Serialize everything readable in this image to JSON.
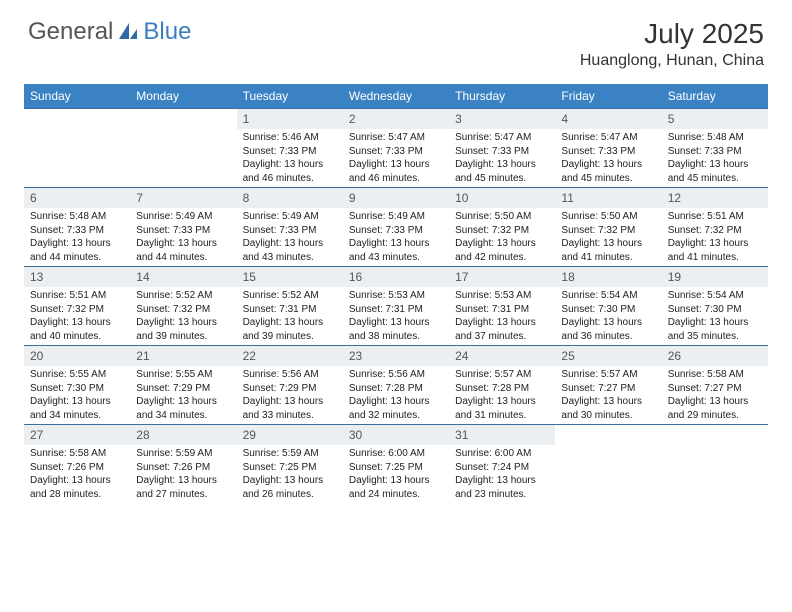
{
  "logo": {
    "text1": "General",
    "text2": "Blue"
  },
  "title": "July 2025",
  "location": "Huanglong, Hunan, China",
  "colors": {
    "header_bg": "#3b82c4",
    "header_text": "#ffffff",
    "daynum_bg": "#eceff1",
    "row_divider": "#3b6fa0",
    "logo_accent": "#3b7fbf",
    "body_text": "#222222"
  },
  "weekdays": [
    "Sunday",
    "Monday",
    "Tuesday",
    "Wednesday",
    "Thursday",
    "Friday",
    "Saturday"
  ],
  "weeks": [
    [
      null,
      null,
      {
        "n": "1",
        "sr": "Sunrise: 5:46 AM",
        "ss": "Sunset: 7:33 PM",
        "dl": "Daylight: 13 hours and 46 minutes."
      },
      {
        "n": "2",
        "sr": "Sunrise: 5:47 AM",
        "ss": "Sunset: 7:33 PM",
        "dl": "Daylight: 13 hours and 46 minutes."
      },
      {
        "n": "3",
        "sr": "Sunrise: 5:47 AM",
        "ss": "Sunset: 7:33 PM",
        "dl": "Daylight: 13 hours and 45 minutes."
      },
      {
        "n": "4",
        "sr": "Sunrise: 5:47 AM",
        "ss": "Sunset: 7:33 PM",
        "dl": "Daylight: 13 hours and 45 minutes."
      },
      {
        "n": "5",
        "sr": "Sunrise: 5:48 AM",
        "ss": "Sunset: 7:33 PM",
        "dl": "Daylight: 13 hours and 45 minutes."
      }
    ],
    [
      {
        "n": "6",
        "sr": "Sunrise: 5:48 AM",
        "ss": "Sunset: 7:33 PM",
        "dl": "Daylight: 13 hours and 44 minutes."
      },
      {
        "n": "7",
        "sr": "Sunrise: 5:49 AM",
        "ss": "Sunset: 7:33 PM",
        "dl": "Daylight: 13 hours and 44 minutes."
      },
      {
        "n": "8",
        "sr": "Sunrise: 5:49 AM",
        "ss": "Sunset: 7:33 PM",
        "dl": "Daylight: 13 hours and 43 minutes."
      },
      {
        "n": "9",
        "sr": "Sunrise: 5:49 AM",
        "ss": "Sunset: 7:33 PM",
        "dl": "Daylight: 13 hours and 43 minutes."
      },
      {
        "n": "10",
        "sr": "Sunrise: 5:50 AM",
        "ss": "Sunset: 7:32 PM",
        "dl": "Daylight: 13 hours and 42 minutes."
      },
      {
        "n": "11",
        "sr": "Sunrise: 5:50 AM",
        "ss": "Sunset: 7:32 PM",
        "dl": "Daylight: 13 hours and 41 minutes."
      },
      {
        "n": "12",
        "sr": "Sunrise: 5:51 AM",
        "ss": "Sunset: 7:32 PM",
        "dl": "Daylight: 13 hours and 41 minutes."
      }
    ],
    [
      {
        "n": "13",
        "sr": "Sunrise: 5:51 AM",
        "ss": "Sunset: 7:32 PM",
        "dl": "Daylight: 13 hours and 40 minutes."
      },
      {
        "n": "14",
        "sr": "Sunrise: 5:52 AM",
        "ss": "Sunset: 7:32 PM",
        "dl": "Daylight: 13 hours and 39 minutes."
      },
      {
        "n": "15",
        "sr": "Sunrise: 5:52 AM",
        "ss": "Sunset: 7:31 PM",
        "dl": "Daylight: 13 hours and 39 minutes."
      },
      {
        "n": "16",
        "sr": "Sunrise: 5:53 AM",
        "ss": "Sunset: 7:31 PM",
        "dl": "Daylight: 13 hours and 38 minutes."
      },
      {
        "n": "17",
        "sr": "Sunrise: 5:53 AM",
        "ss": "Sunset: 7:31 PM",
        "dl": "Daylight: 13 hours and 37 minutes."
      },
      {
        "n": "18",
        "sr": "Sunrise: 5:54 AM",
        "ss": "Sunset: 7:30 PM",
        "dl": "Daylight: 13 hours and 36 minutes."
      },
      {
        "n": "19",
        "sr": "Sunrise: 5:54 AM",
        "ss": "Sunset: 7:30 PM",
        "dl": "Daylight: 13 hours and 35 minutes."
      }
    ],
    [
      {
        "n": "20",
        "sr": "Sunrise: 5:55 AM",
        "ss": "Sunset: 7:30 PM",
        "dl": "Daylight: 13 hours and 34 minutes."
      },
      {
        "n": "21",
        "sr": "Sunrise: 5:55 AM",
        "ss": "Sunset: 7:29 PM",
        "dl": "Daylight: 13 hours and 34 minutes."
      },
      {
        "n": "22",
        "sr": "Sunrise: 5:56 AM",
        "ss": "Sunset: 7:29 PM",
        "dl": "Daylight: 13 hours and 33 minutes."
      },
      {
        "n": "23",
        "sr": "Sunrise: 5:56 AM",
        "ss": "Sunset: 7:28 PM",
        "dl": "Daylight: 13 hours and 32 minutes."
      },
      {
        "n": "24",
        "sr": "Sunrise: 5:57 AM",
        "ss": "Sunset: 7:28 PM",
        "dl": "Daylight: 13 hours and 31 minutes."
      },
      {
        "n": "25",
        "sr": "Sunrise: 5:57 AM",
        "ss": "Sunset: 7:27 PM",
        "dl": "Daylight: 13 hours and 30 minutes."
      },
      {
        "n": "26",
        "sr": "Sunrise: 5:58 AM",
        "ss": "Sunset: 7:27 PM",
        "dl": "Daylight: 13 hours and 29 minutes."
      }
    ],
    [
      {
        "n": "27",
        "sr": "Sunrise: 5:58 AM",
        "ss": "Sunset: 7:26 PM",
        "dl": "Daylight: 13 hours and 28 minutes."
      },
      {
        "n": "28",
        "sr": "Sunrise: 5:59 AM",
        "ss": "Sunset: 7:26 PM",
        "dl": "Daylight: 13 hours and 27 minutes."
      },
      {
        "n": "29",
        "sr": "Sunrise: 5:59 AM",
        "ss": "Sunset: 7:25 PM",
        "dl": "Daylight: 13 hours and 26 minutes."
      },
      {
        "n": "30",
        "sr": "Sunrise: 6:00 AM",
        "ss": "Sunset: 7:25 PM",
        "dl": "Daylight: 13 hours and 24 minutes."
      },
      {
        "n": "31",
        "sr": "Sunrise: 6:00 AM",
        "ss": "Sunset: 7:24 PM",
        "dl": "Daylight: 13 hours and 23 minutes."
      },
      null,
      null
    ]
  ]
}
